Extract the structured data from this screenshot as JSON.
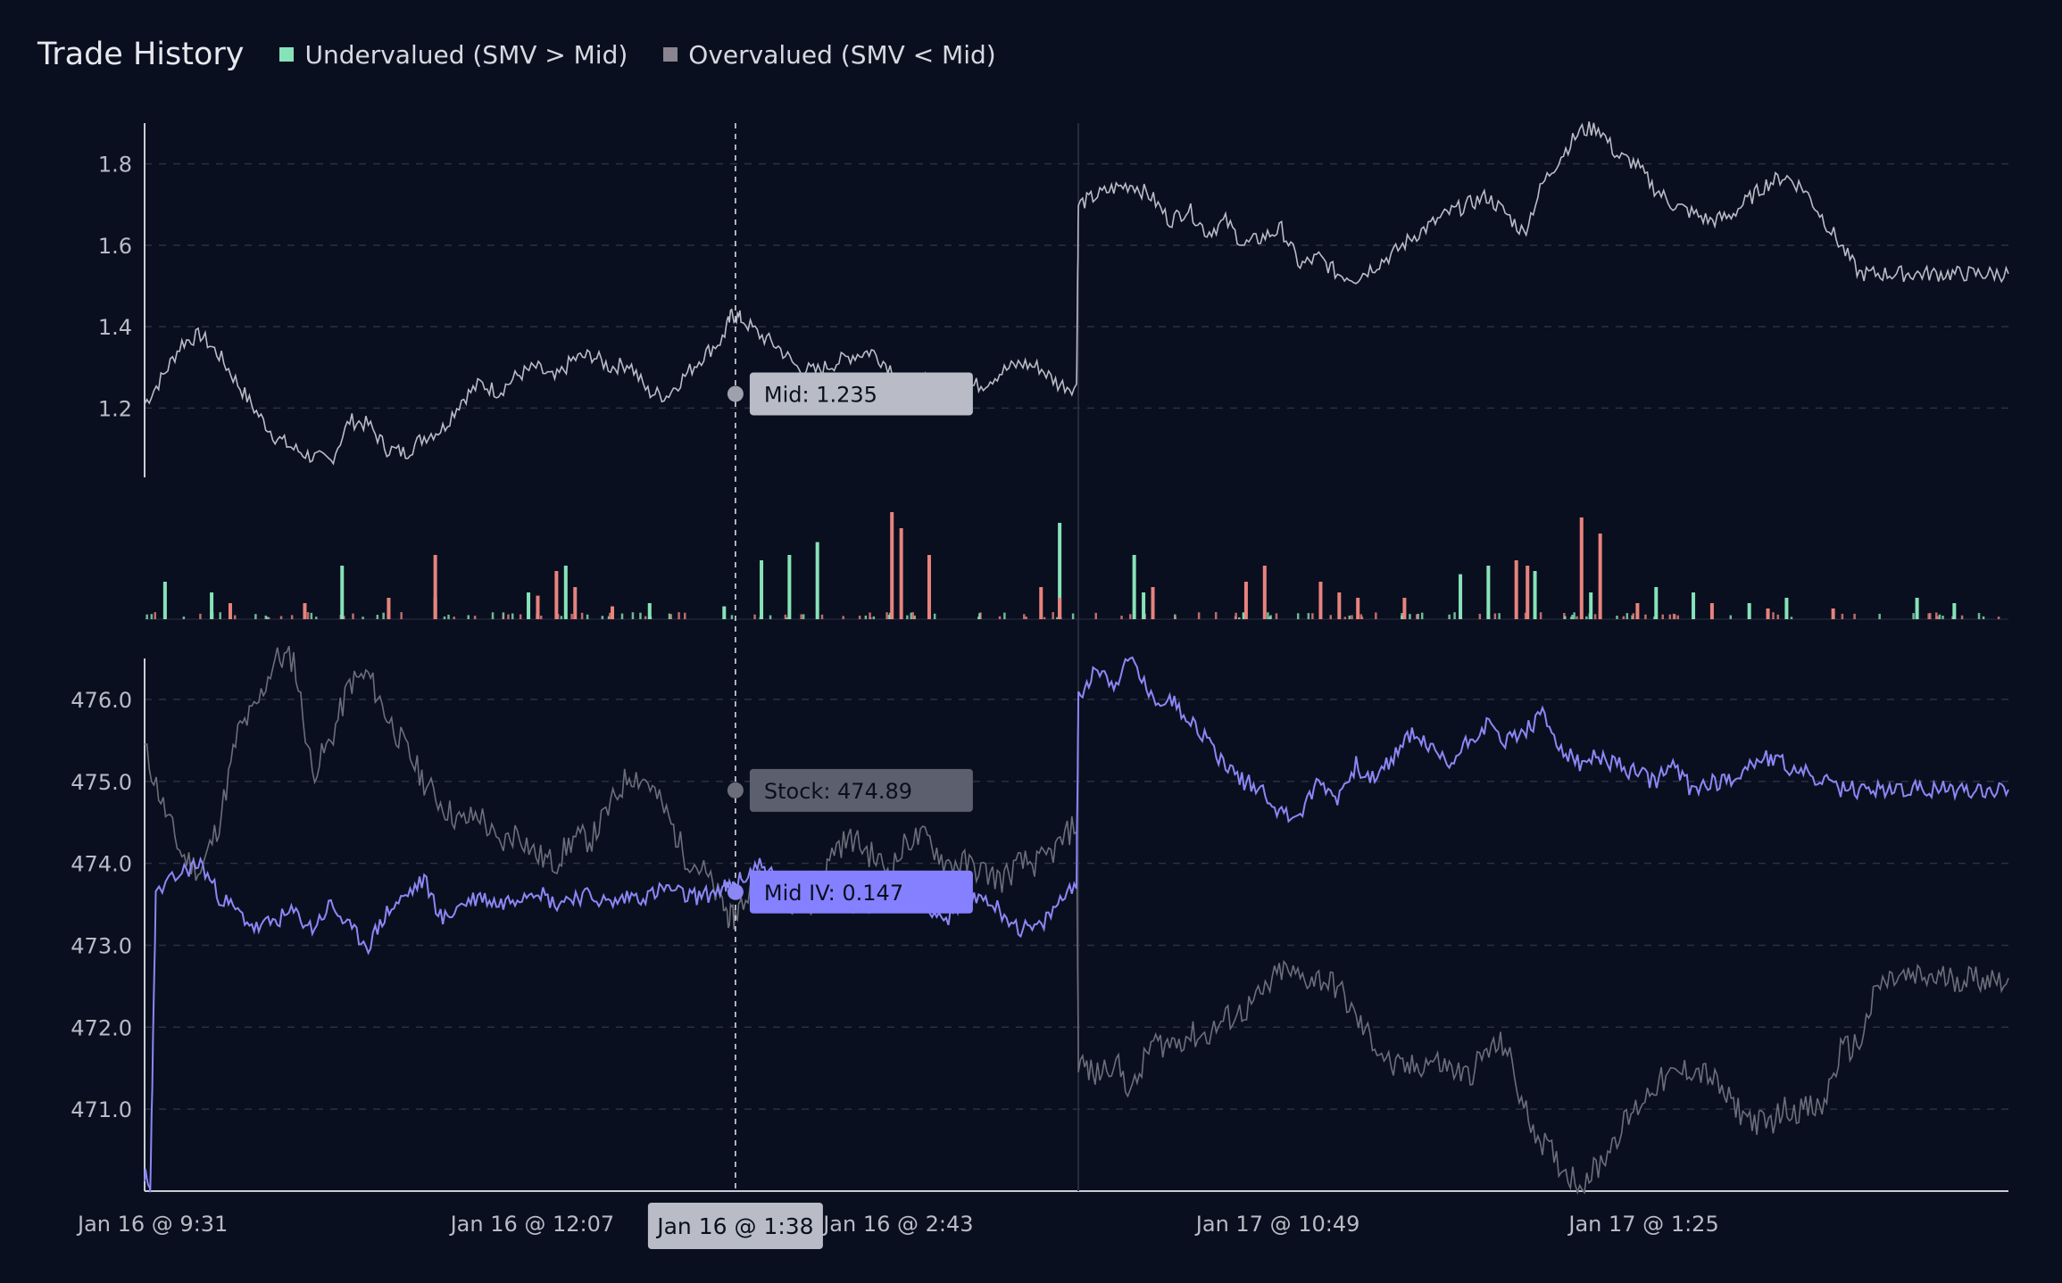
{
  "header": {
    "title": "Trade History",
    "legend": [
      {
        "label": "Undervalued (SMV > Mid)",
        "color": "#86e3b8"
      },
      {
        "label": "Overvalued (SMV < Mid)",
        "color": "#8a8490"
      }
    ]
  },
  "chart_data": {
    "type": "line",
    "title": "Trade History",
    "x_ticks": [
      "Jan 16 @ 9:31",
      "Jan 16 @ 12:07",
      "Jan 16 @ 2:43",
      "Jan 17 @ 10:49",
      "Jan 17 @ 1:25"
    ],
    "cursor": {
      "label": "Jan 16 @ 1:38"
    },
    "colors": {
      "mid": "#b9bcc6",
      "stock": "#6b6e7a",
      "iv": "#8b87f5",
      "under": "#86e3b8",
      "over": "#e8837d",
      "cursor_tip": "#b9bcc6",
      "stock_tip": "#5c606e",
      "iv_tip": "#8580ff"
    },
    "mid_panel": {
      "y_ticks": [
        "1.2",
        "1.4",
        "1.6",
        "1.8"
      ],
      "ylim": [
        1.03,
        1.9
      ],
      "series": {
        "x": [
          0,
          0.01,
          0.02,
          0.03,
          0.04,
          0.05,
          0.06,
          0.07,
          0.08,
          0.09,
          0.1,
          0.11,
          0.12,
          0.13,
          0.14,
          0.15,
          0.16,
          0.17,
          0.18,
          0.19,
          0.2,
          0.21,
          0.22,
          0.23,
          0.24,
          0.25,
          0.26,
          0.27,
          0.28,
          0.29,
          0.3,
          0.31,
          0.315,
          0.32,
          0.33,
          0.34,
          0.35,
          0.36,
          0.37,
          0.38,
          0.39,
          0.4,
          0.41,
          0.42,
          0.43,
          0.44,
          0.45,
          0.46,
          0.47,
          0.48,
          0.49,
          0.5,
          0.501,
          0.51,
          0.52,
          0.53,
          0.54,
          0.55,
          0.56,
          0.57,
          0.58,
          0.59,
          0.6,
          0.61,
          0.62,
          0.63,
          0.64,
          0.65,
          0.66,
          0.67,
          0.68,
          0.69,
          0.7,
          0.71,
          0.72,
          0.73,
          0.74,
          0.75,
          0.76,
          0.77,
          0.78,
          0.79,
          0.8,
          0.81,
          0.82,
          0.83,
          0.84,
          0.85,
          0.86,
          0.87,
          0.88,
          0.89,
          0.9,
          0.91,
          0.92,
          0.93,
          0.94,
          0.95,
          0.96,
          0.97,
          0.98,
          0.99,
          1.0
        ],
        "values": [
          1.21,
          1.28,
          1.36,
          1.38,
          1.33,
          1.26,
          1.19,
          1.13,
          1.1,
          1.08,
          1.07,
          1.17,
          1.16,
          1.1,
          1.09,
          1.13,
          1.15,
          1.22,
          1.26,
          1.24,
          1.28,
          1.3,
          1.27,
          1.32,
          1.33,
          1.3,
          1.31,
          1.24,
          1.23,
          1.28,
          1.33,
          1.37,
          1.43,
          1.42,
          1.38,
          1.35,
          1.3,
          1.29,
          1.31,
          1.33,
          1.34,
          1.3,
          1.25,
          1.27,
          1.23,
          1.25,
          1.26,
          1.29,
          1.31,
          1.3,
          1.26,
          1.25,
          1.7,
          1.72,
          1.74,
          1.75,
          1.72,
          1.66,
          1.69,
          1.63,
          1.66,
          1.6,
          1.62,
          1.64,
          1.55,
          1.57,
          1.53,
          1.52,
          1.55,
          1.58,
          1.62,
          1.65,
          1.68,
          1.7,
          1.72,
          1.68,
          1.63,
          1.75,
          1.82,
          1.88,
          1.89,
          1.82,
          1.8,
          1.74,
          1.7,
          1.68,
          1.66,
          1.67,
          1.71,
          1.75,
          1.77,
          1.74,
          1.67,
          1.6,
          1.53,
          1.53,
          1.53,
          1.53,
          1.53,
          1.53,
          1.53,
          1.53,
          1.53
        ]
      }
    },
    "volume_panel": {
      "under": [
        [
          0.01,
          0.35
        ],
        [
          0.035,
          0.25
        ],
        [
          0.105,
          0.5
        ],
        [
          0.155,
          0.2
        ],
        [
          0.205,
          0.25
        ],
        [
          0.225,
          0.5
        ],
        [
          0.27,
          0.15
        ],
        [
          0.31,
          0.12
        ],
        [
          0.33,
          0.55
        ],
        [
          0.345,
          0.6
        ],
        [
          0.36,
          0.72
        ],
        [
          0.49,
          0.9
        ],
        [
          0.535,
          0.25
        ],
        [
          0.53,
          0.6
        ],
        [
          0.705,
          0.42
        ],
        [
          0.72,
          0.5
        ],
        [
          0.745,
          0.45
        ],
        [
          0.775,
          0.25
        ],
        [
          0.81,
          0.3
        ],
        [
          0.83,
          0.25
        ],
        [
          0.86,
          0.15
        ],
        [
          0.88,
          0.2
        ],
        [
          0.95,
          0.2
        ],
        [
          0.97,
          0.15
        ]
      ],
      "over": [
        [
          0.045,
          0.15
        ],
        [
          0.085,
          0.15
        ],
        [
          0.13,
          0.2
        ],
        [
          0.155,
          0.6
        ],
        [
          0.21,
          0.22
        ],
        [
          0.22,
          0.45
        ],
        [
          0.23,
          0.3
        ],
        [
          0.25,
          0.12
        ],
        [
          0.4,
          1.0
        ],
        [
          0.405,
          0.85
        ],
        [
          0.42,
          0.6
        ],
        [
          0.48,
          0.3
        ],
        [
          0.49,
          0.2
        ],
        [
          0.54,
          0.3
        ],
        [
          0.59,
          0.35
        ],
        [
          0.6,
          0.5
        ],
        [
          0.63,
          0.35
        ],
        [
          0.64,
          0.25
        ],
        [
          0.65,
          0.2
        ],
        [
          0.675,
          0.2
        ],
        [
          0.735,
          0.55
        ],
        [
          0.741,
          0.5
        ],
        [
          0.78,
          0.8
        ],
        [
          0.77,
          0.95
        ],
        [
          0.8,
          0.15
        ],
        [
          0.84,
          0.15
        ],
        [
          0.87,
          0.1
        ],
        [
          0.905,
          0.1
        ]
      ]
    },
    "lower_panel": {
      "y_ticks": [
        "471.0",
        "472.0",
        "473.0",
        "474.0",
        "475.0",
        "476.0"
      ],
      "ylim": [
        470.0,
        476.5
      ],
      "stock": {
        "x": [
          0,
          0.01,
          0.02,
          0.03,
          0.04,
          0.05,
          0.06,
          0.07,
          0.08,
          0.09,
          0.1,
          0.11,
          0.12,
          0.13,
          0.14,
          0.15,
          0.16,
          0.17,
          0.18,
          0.19,
          0.2,
          0.21,
          0.22,
          0.23,
          0.24,
          0.25,
          0.26,
          0.27,
          0.28,
          0.29,
          0.3,
          0.31,
          0.315,
          0.32,
          0.33,
          0.34,
          0.35,
          0.36,
          0.37,
          0.38,
          0.39,
          0.4,
          0.41,
          0.42,
          0.43,
          0.44,
          0.45,
          0.46,
          0.47,
          0.48,
          0.49,
          0.5,
          0.501,
          0.51,
          0.52,
          0.53,
          0.54,
          0.55,
          0.56,
          0.57,
          0.58,
          0.59,
          0.6,
          0.61,
          0.62,
          0.63,
          0.64,
          0.65,
          0.66,
          0.67,
          0.68,
          0.69,
          0.7,
          0.71,
          0.72,
          0.73,
          0.74,
          0.75,
          0.76,
          0.77,
          0.78,
          0.79,
          0.8,
          0.81,
          0.82,
          0.83,
          0.84,
          0.85,
          0.86,
          0.87,
          0.88,
          0.89,
          0.9,
          0.91,
          0.92,
          0.93,
          0.94,
          0.95,
          0.96,
          0.97,
          0.98,
          0.99,
          1.0
        ],
        "values": [
          475.4,
          474.7,
          474.1,
          473.9,
          474.5,
          475.6,
          475.9,
          476.5,
          476.5,
          475.1,
          475.5,
          476.2,
          476.3,
          475.8,
          475.4,
          475.0,
          474.7,
          474.5,
          474.6,
          474.2,
          474.4,
          474.1,
          474.0,
          474.3,
          474.3,
          474.7,
          475.1,
          475.0,
          474.6,
          474.1,
          473.9,
          473.5,
          473.3,
          473.5,
          473.8,
          473.7,
          473.5,
          473.5,
          474.2,
          474.3,
          474.1,
          473.9,
          474.3,
          474.3,
          474.0,
          474.0,
          473.9,
          473.8,
          474.0,
          474.0,
          474.2,
          474.5,
          471.6,
          471.4,
          471.6,
          471.2,
          471.8,
          471.8,
          471.9,
          471.9,
          472.1,
          472.2,
          472.4,
          472.7,
          472.6,
          472.6,
          472.5,
          472.1,
          471.8,
          471.5,
          471.5,
          471.6,
          471.5,
          471.4,
          471.7,
          471.8,
          471.0,
          470.6,
          470.3,
          470.1,
          470.3,
          470.7,
          471.0,
          471.3,
          471.4,
          471.5,
          471.4,
          471.1,
          470.9,
          470.8,
          471.0,
          471.0,
          471.0,
          471.7,
          471.8,
          472.5,
          472.6,
          472.6,
          472.6,
          472.6,
          472.6,
          472.6,
          472.6
        ]
      },
      "iv": {
        "x": [
          0,
          0.003,
          0.006,
          0.02,
          0.03,
          0.04,
          0.05,
          0.06,
          0.07,
          0.08,
          0.09,
          0.1,
          0.11,
          0.12,
          0.13,
          0.14,
          0.15,
          0.16,
          0.17,
          0.18,
          0.19,
          0.2,
          0.21,
          0.22,
          0.23,
          0.24,
          0.25,
          0.26,
          0.27,
          0.28,
          0.29,
          0.3,
          0.31,
          0.315,
          0.32,
          0.33,
          0.34,
          0.35,
          0.36,
          0.37,
          0.38,
          0.39,
          0.4,
          0.41,
          0.42,
          0.43,
          0.44,
          0.45,
          0.46,
          0.47,
          0.48,
          0.49,
          0.5,
          0.501,
          0.51,
          0.52,
          0.53,
          0.54,
          0.55,
          0.56,
          0.57,
          0.58,
          0.59,
          0.6,
          0.61,
          0.62,
          0.63,
          0.64,
          0.65,
          0.66,
          0.67,
          0.68,
          0.69,
          0.7,
          0.71,
          0.72,
          0.73,
          0.74,
          0.75,
          0.76,
          0.77,
          0.78,
          0.79,
          0.8,
          0.81,
          0.82,
          0.83,
          0.84,
          0.85,
          0.86,
          0.87,
          0.88,
          0.89,
          0.9,
          0.91,
          0.92,
          0.93,
          0.94,
          0.95,
          0.96,
          0.97,
          0.98,
          0.99,
          1.0
        ],
        "values": [
          470.2,
          470.0,
          473.6,
          473.9,
          474.0,
          473.6,
          473.4,
          473.2,
          473.3,
          473.4,
          473.2,
          473.5,
          473.2,
          473.0,
          473.4,
          473.6,
          473.8,
          473.3,
          473.5,
          473.6,
          473.5,
          473.6,
          473.7,
          473.5,
          473.6,
          473.6,
          473.5,
          473.6,
          473.6,
          473.7,
          473.6,
          473.6,
          473.7,
          473.7,
          473.8,
          474.0,
          473.8,
          473.5,
          473.6,
          473.6,
          473.5,
          473.5,
          473.6,
          473.6,
          473.5,
          473.3,
          473.5,
          473.6,
          473.4,
          473.2,
          473.2,
          473.5,
          473.8,
          476.0,
          476.4,
          476.2,
          476.5,
          476.0,
          476.0,
          475.8,
          475.5,
          475.2,
          475.0,
          474.9,
          474.6,
          474.6,
          475.0,
          474.8,
          475.2,
          475.0,
          475.3,
          475.6,
          475.4,
          475.2,
          475.5,
          475.7,
          475.5,
          475.6,
          475.8,
          475.4,
          475.2,
          475.3,
          475.2,
          475.1,
          475.0,
          475.2,
          474.9,
          475.0,
          475.0,
          475.2,
          475.3,
          475.2,
          475.1,
          475.0,
          474.9,
          474.9,
          474.9,
          474.9,
          474.9,
          474.9,
          474.9,
          474.9,
          474.9,
          474.9
        ]
      }
    },
    "tooltips": {
      "mid": {
        "label": "Mid: 1.235",
        "value": 1.235
      },
      "stock": {
        "label": "Stock: 474.89",
        "value": 474.89
      },
      "iv": {
        "label": "Mid IV: 0.147",
        "value": 473.65
      }
    },
    "cursor_x": 0.317,
    "break_x": 0.5
  }
}
